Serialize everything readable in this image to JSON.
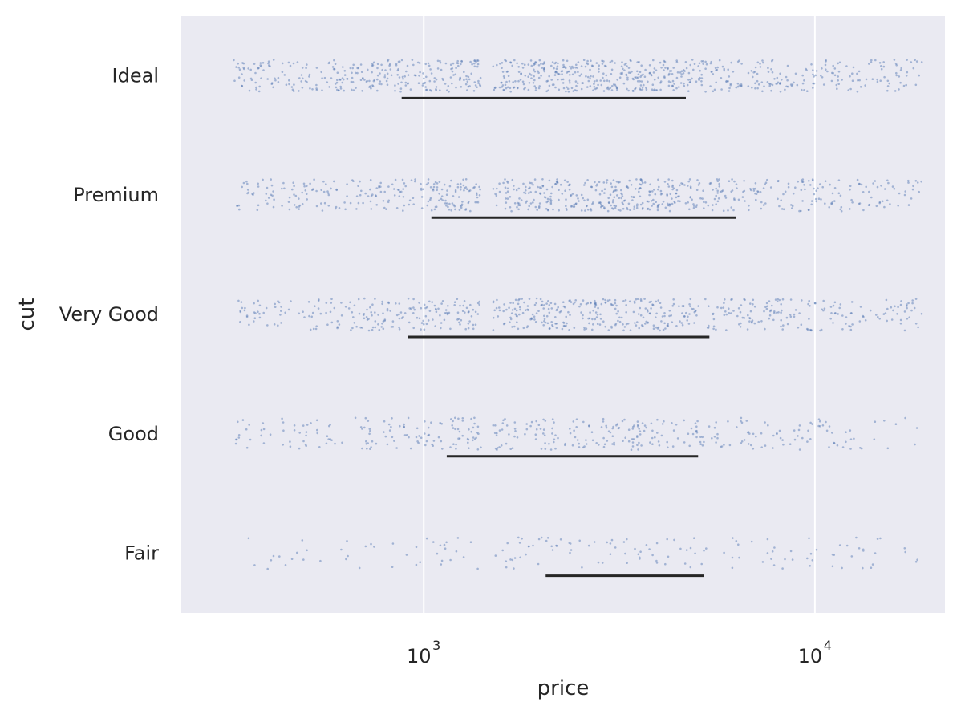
{
  "chart_data": {
    "type": "scatter",
    "subtype": "strip-plot-with-interval",
    "title": "",
    "xlabel": "price",
    "ylabel": "cut",
    "x_scale": "log",
    "xlim": [
      240,
      21500
    ],
    "x_ticks": [
      {
        "value": 1000,
        "base": "10",
        "exp": "3"
      },
      {
        "value": 10000,
        "base": "10",
        "exp": "4"
      }
    ],
    "categories": [
      "Ideal",
      "Premium",
      "Very Good",
      "Good",
      "Fair"
    ],
    "x_gap": [
      1400,
      1500
    ],
    "grid": true,
    "background": "#eaeaf2",
    "grid_color": "#ffffff",
    "point_color": "#4c72b0",
    "interval_color": "#262626",
    "series": [
      {
        "category": "Ideal",
        "density": 1.0,
        "range": [
          326,
          18806
        ],
        "interval": [
          878,
          4678
        ]
      },
      {
        "category": "Premium",
        "density": 0.85,
        "range": [
          326,
          18823
        ],
        "interval": [
          1046,
          6296
        ]
      },
      {
        "category": "Very Good",
        "density": 0.75,
        "range": [
          336,
          18818
        ],
        "interval": [
          912,
          5373
        ]
      },
      {
        "category": "Good",
        "density": 0.45,
        "range": [
          327,
          18788
        ],
        "interval": [
          1145,
          5028
        ]
      },
      {
        "category": "Fair",
        "density": 0.18,
        "range": [
          337,
          18574
        ],
        "interval": [
          2050,
          5205
        ]
      }
    ]
  }
}
